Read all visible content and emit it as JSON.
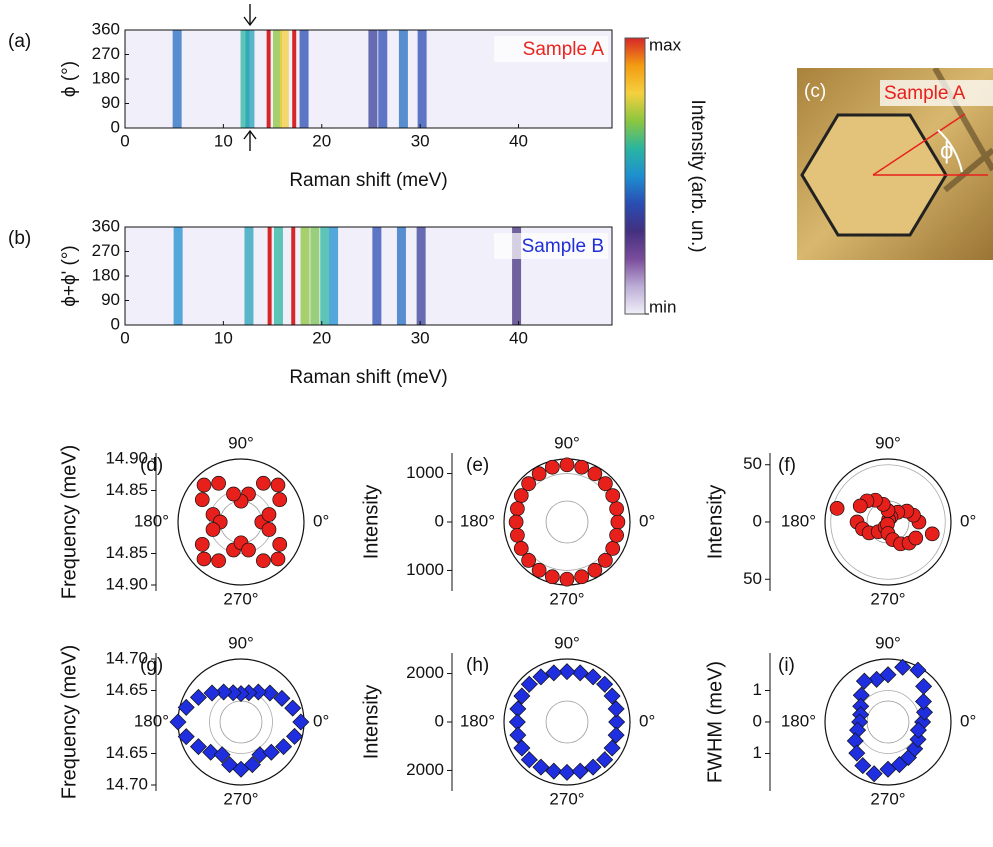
{
  "chart_data": [
    {
      "type": "heatmap",
      "panel": "(a)",
      "xlabel": "Raman shift (meV)",
      "ylabel": "ϕ (°)",
      "annotation": "Sample A",
      "annotation_color": "#e8251f",
      "xlim": [
        0,
        49.5
      ],
      "xticks": [
        0,
        10,
        20,
        30,
        40
      ],
      "ylim": [
        0,
        360
      ],
      "yticks": [
        0,
        90,
        180,
        270,
        360
      ],
      "x": [
        5.3,
        12.2,
        12.7,
        14.6,
        15.5,
        16.2,
        17.2,
        18.2,
        25.2,
        26.2,
        28.3,
        30.2
      ],
      "values": [
        0.45,
        0.6,
        0.55,
        1,
        0.7,
        0.8,
        1,
        0.4,
        0.35,
        0.4,
        0.45,
        0.4
      ],
      "colorbar": {
        "label": "Intensity (arb. un.)",
        "lim": [
          0,
          1
        ],
        "ticks": [
          {
            "value": 0,
            "label": "min"
          },
          {
            "value": 1,
            "label": "max"
          }
        ],
        "colormap": [
          "#f1eff9",
          "#bcadd6",
          "#7a4c9c",
          "#43307f",
          "#2a4db3",
          "#1e8fd0",
          "#2bb5a0",
          "#8cc63f",
          "#f4d03f",
          "#f39c12",
          "#d62728"
        ]
      }
    },
    {
      "type": "heatmap",
      "panel": "(b)",
      "xlabel": "Raman shift (meV)",
      "ylabel": "ϕ+ϕ' (°)",
      "annotation": "Sample B",
      "annotation_color": "#1f2fd6",
      "xlim": [
        0,
        49.5
      ],
      "xticks": [
        0,
        10,
        20,
        30,
        40
      ],
      "ylim": [
        0,
        360
      ],
      "yticks": [
        0,
        90,
        180,
        270,
        360
      ],
      "x": [
        5.4,
        12.6,
        14.7,
        15.6,
        17.1,
        18.3,
        19.3,
        20.3,
        21.2,
        25.6,
        28.1,
        30.1,
        39.8
      ],
      "values": [
        0.5,
        0.55,
        1,
        0.6,
        1,
        0.7,
        0.68,
        0.6,
        0.5,
        0.4,
        0.45,
        0.35,
        0.3
      ]
    },
    {
      "type": "polar",
      "panel": "(d)",
      "ylabel": "Frequency (meV)",
      "marker": "circle",
      "color": "#e8201c",
      "rlim": [
        14.8,
        14.9
      ],
      "rticks": [
        14.85,
        {
          "value": 14.9,
          "label": "14.90"
        }
      ],
      "thetaticks": [
        {
          "value": 90,
          "label": "90°"
        },
        {
          "value": 180,
          "label": "180°"
        },
        {
          "value": 270,
          "label": "270°"
        },
        {
          "value": 0,
          "label": "0°"
        }
      ],
      "theta": [
        0,
        15,
        30,
        45,
        60,
        75,
        90,
        105,
        120,
        135,
        150,
        165,
        180,
        195,
        210,
        225,
        240,
        255,
        270,
        285,
        300,
        315,
        330,
        345
      ],
      "values": [
        14.833,
        14.846,
        14.871,
        14.883,
        14.871,
        14.846,
        14.833,
        14.846,
        14.871,
        14.883,
        14.871,
        14.846,
        14.833,
        14.846,
        14.871,
        14.883,
        14.871,
        14.846,
        14.833,
        14.846,
        14.871,
        14.883,
        14.871,
        14.846
      ]
    },
    {
      "type": "polar",
      "panel": "(e)",
      "ylabel": "Intensity",
      "marker": "circle",
      "color": "#e8201c",
      "rlim": [
        0,
        1300
      ],
      "rticks": [
        0,
        1000
      ],
      "thetaticks": [
        {
          "value": 90,
          "label": "90°"
        },
        {
          "value": 180,
          "label": "180°"
        },
        {
          "value": 270,
          "label": "270°"
        },
        {
          "value": 0,
          "label": "0°"
        }
      ],
      "theta": [
        0,
        15,
        30,
        45,
        60,
        75,
        90,
        105,
        120,
        135,
        150,
        165,
        180,
        195,
        210,
        225,
        240,
        255,
        270,
        285,
        300,
        315,
        330,
        345
      ],
      "values": [
        1050,
        1060,
        1090,
        1120,
        1150,
        1170,
        1180,
        1170,
        1150,
        1120,
        1090,
        1060,
        1050,
        1060,
        1090,
        1120,
        1150,
        1170,
        1180,
        1170,
        1150,
        1120,
        1090,
        1060
      ]
    },
    {
      "type": "polar",
      "panel": "(f)",
      "ylabel": "Intensity",
      "marker": "circle",
      "color": "#e8201c",
      "rlim": [
        0,
        55
      ],
      "rticks": [
        0,
        50
      ],
      "thetaticks": [
        {
          "value": 90,
          "label": "90°"
        },
        {
          "value": 180,
          "label": "180°"
        },
        {
          "value": 270,
          "label": "270°"
        },
        {
          "value": 0,
          "label": "0°"
        }
      ],
      "theta": [
        0,
        15,
        30,
        45,
        60,
        75,
        90,
        105,
        120,
        135,
        150,
        165,
        180,
        195,
        210,
        225,
        240,
        255,
        270,
        285,
        300,
        315,
        330,
        345
      ],
      "values": [
        27,
        23,
        19,
        12,
        5,
        2,
        10,
        16,
        22,
        26,
        28,
        46,
        27,
        23,
        19,
        12,
        5,
        2,
        10,
        16,
        22,
        26,
        28,
        40
      ]
    },
    {
      "type": "polar",
      "panel": "(g)",
      "ylabel": "Frequency (meV)",
      "marker": "diamond",
      "color": "#1f2fe0",
      "rlim": [
        14.6,
        14.7
      ],
      "rticks": [
        14.65,
        {
          "value": 14.7,
          "label": "14.70"
        }
      ],
      "thetaticks": [
        {
          "value": 90,
          "label": "90°"
        },
        {
          "value": 180,
          "label": "180°"
        },
        {
          "value": 270,
          "label": "270°"
        },
        {
          "value": 0,
          "label": "0°"
        }
      ],
      "theta": [
        0,
        15,
        30,
        45,
        60,
        75,
        90,
        105,
        120,
        135,
        150,
        165,
        180,
        195,
        210,
        225,
        240,
        255,
        270,
        285,
        300,
        315,
        330,
        345
      ],
      "values": [
        14.695,
        14.685,
        14.675,
        14.665,
        14.655,
        14.648,
        14.645,
        14.648,
        14.655,
        14.665,
        14.678,
        14.69,
        14.7,
        14.69,
        14.678,
        14.668,
        14.66,
        14.67,
        14.675,
        14.67,
        14.66,
        14.668,
        14.678,
        14.688
      ]
    },
    {
      "type": "polar",
      "panel": "(h)",
      "ylabel": "Intensity",
      "marker": "diamond",
      "color": "#1f2fe0",
      "rlim": [
        0,
        2600
      ],
      "rticks": [
        0,
        2000
      ],
      "thetaticks": [
        {
          "value": 90,
          "label": "90°"
        },
        {
          "value": 180,
          "label": "180°"
        },
        {
          "value": 270,
          "label": "270°"
        },
        {
          "value": 0,
          "label": "0°"
        }
      ],
      "theta": [
        0,
        15,
        30,
        45,
        60,
        75,
        90,
        105,
        120,
        135,
        150,
        165,
        180,
        195,
        210,
        225,
        240,
        255,
        270,
        285,
        300,
        315,
        330,
        345
      ],
      "values": [
        2050,
        2100,
        2150,
        2200,
        2150,
        2100,
        2080,
        2100,
        2150,
        2200,
        2150,
        2100,
        2050,
        2100,
        2150,
        2200,
        2150,
        2100,
        2080,
        2100,
        2150,
        2200,
        2150,
        2100
      ]
    },
    {
      "type": "polar",
      "panel": "(i)",
      "ylabel": "FWHM (meV)",
      "marker": "diamond",
      "color": "#1f2fe0",
      "rlim": [
        0,
        2
      ],
      "rticks": [
        0,
        1
      ],
      "thetaticks": [
        {
          "value": 90,
          "label": "90°"
        },
        {
          "value": 180,
          "label": "180°"
        },
        {
          "value": 270,
          "label": "270°"
        },
        {
          "value": 0,
          "label": "0°"
        }
      ],
      "theta": [
        0,
        15,
        30,
        45,
        60,
        75,
        90,
        105,
        120,
        135,
        150,
        165,
        180,
        195,
        210,
        225,
        240,
        255,
        270,
        285,
        300,
        315,
        330,
        345
      ],
      "values": [
        1.1,
        1.2,
        1.3,
        1.6,
        1.9,
        1.8,
        1.5,
        1.4,
        1.5,
        1.2,
        1.0,
        0.9,
        0.9,
        1.0,
        1.2,
        1.4,
        1.6,
        1.7,
        1.5,
        1.4,
        1.3,
        1.2,
        1.1,
        1.0
      ]
    }
  ],
  "image": {
    "panel": "(c)",
    "label": "Sample A",
    "angle_symbol": "ϕ"
  }
}
